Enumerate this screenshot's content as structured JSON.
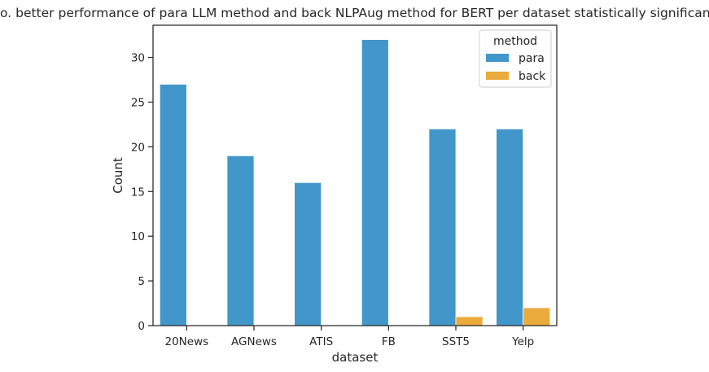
{
  "chart_data": {
    "type": "bar",
    "title": "No. better performance of para LLM method and back NLPAug method for BERT per dataset statistically significant.",
    "xlabel": "dataset",
    "ylabel": "Count",
    "categories": [
      "20News",
      "AGNews",
      "ATIS",
      "FB",
      "SST5",
      "Yelp"
    ],
    "series": [
      {
        "name": "para",
        "values": [
          27,
          19,
          16,
          32,
          22,
          22
        ],
        "color": "#4197C9"
      },
      {
        "name": "back",
        "values": [
          0,
          0,
          0,
          0,
          1,
          2
        ],
        "color": "#EBAA3C"
      }
    ],
    "ylim": [
      0,
      33.6
    ],
    "yticks": [
      0,
      5,
      10,
      15,
      20,
      25,
      30
    ],
    "grid": false,
    "legend": {
      "title": "method",
      "position": "top-right"
    }
  }
}
